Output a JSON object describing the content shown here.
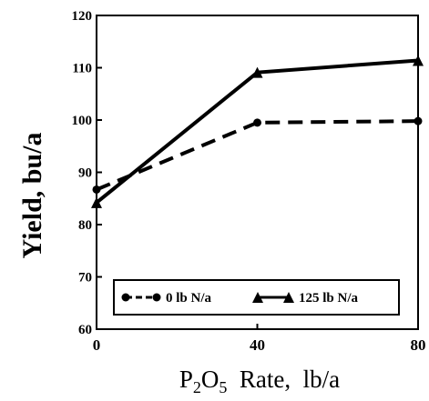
{
  "chart_data": {
    "type": "line",
    "xlabel": "P2O5 Rate, lb/a",
    "xlabel_parts": {
      "p": "P",
      "sub2": "2",
      "o": "O",
      "sub5": "5",
      "rest": "  Rate,  lb/a"
    },
    "ylabel": "Yield, bu/a",
    "x": [
      0,
      40,
      80
    ],
    "xticks": [
      "0",
      "40",
      "80"
    ],
    "yticks": [
      "60",
      "70",
      "80",
      "90",
      "100",
      "110",
      "120"
    ],
    "xlim": [
      0,
      80
    ],
    "ylim": [
      60,
      120
    ],
    "grid": false,
    "legend_position": "bottom-center",
    "series": [
      {
        "name": "0 lb N/a",
        "values": [
          86.7,
          99.5,
          99.8
        ],
        "marker": "circle",
        "line_style": "dashed",
        "color": "#000000"
      },
      {
        "name": "125 lb N/a",
        "values": [
          84.2,
          109.1,
          111.4
        ],
        "marker": "triangle",
        "line_style": "solid",
        "color": "#000000"
      }
    ]
  }
}
